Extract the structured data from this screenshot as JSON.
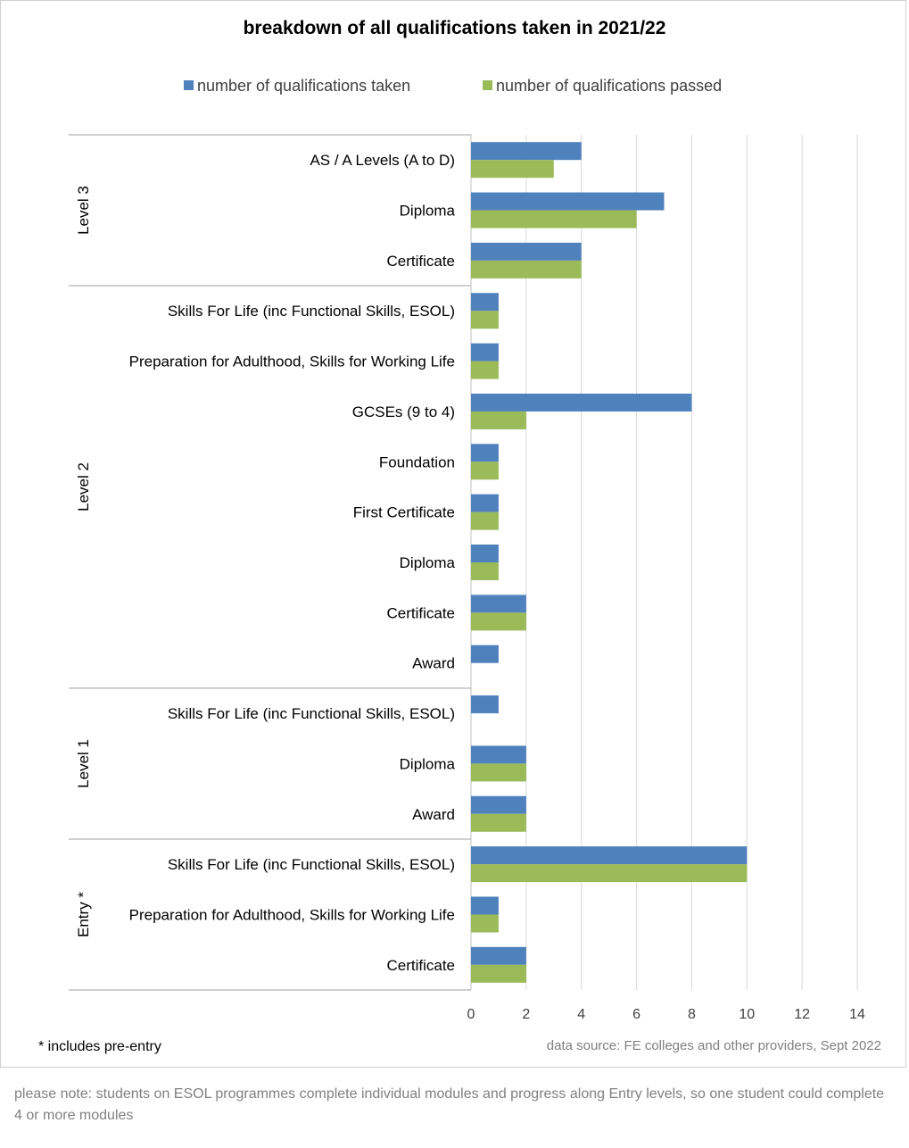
{
  "colors": {
    "taken": "#4f81bd",
    "passed": "#9bbb59",
    "grid": "#d9d9d9",
    "axis_text": "#404040"
  },
  "footnote": "* includes pre-entry",
  "source": "data source: FE colleges and other providers, Sept 2022",
  "note": "please note: students on ESOL programmes complete individual modules and progress along Entry levels, so one student could complete 4  or more modules",
  "chart_data": {
    "type": "bar",
    "orientation": "horizontal",
    "title": "breakdown of all qualifications taken in 2021/22",
    "xlim": [
      0,
      14
    ],
    "x_ticks": [
      "0",
      "2",
      "4",
      "6",
      "8",
      "10",
      "12",
      "14"
    ],
    "grid": true,
    "legend_position": "top",
    "groups": [
      {
        "name": "Level 3",
        "categories": [
          "AS / A Levels (A to D)",
          "Diploma",
          "Certificate"
        ]
      },
      {
        "name": "Level 2",
        "categories": [
          "Skills For Life (inc Functional Skills, ESOL)",
          "Preparation for Adulthood, Skills for Working Life",
          "GCSEs (9 to 4)",
          "Foundation",
          "First Certificate",
          "Diploma",
          "Certificate",
          "Award"
        ]
      },
      {
        "name": "Level 1",
        "categories": [
          "Skills For Life (inc Functional Skills, ESOL)",
          "Diploma",
          "Award"
        ]
      },
      {
        "name": "Entry *",
        "categories": [
          "Skills For Life (inc Functional Skills, ESOL)",
          "Preparation for Adulthood, Skills for Working Life",
          "Certificate"
        ]
      }
    ],
    "series": [
      {
        "name": "number of qualifications taken",
        "values": [
          4,
          7,
          4,
          1,
          1,
          8,
          1,
          1,
          1,
          2,
          1,
          1,
          2,
          2,
          10,
          1,
          2
        ]
      },
      {
        "name": "number of qualifications passed",
        "values": [
          3,
          6,
          4,
          1,
          1,
          2,
          1,
          1,
          1,
          2,
          0,
          0,
          2,
          2,
          10,
          1,
          2
        ]
      }
    ]
  }
}
